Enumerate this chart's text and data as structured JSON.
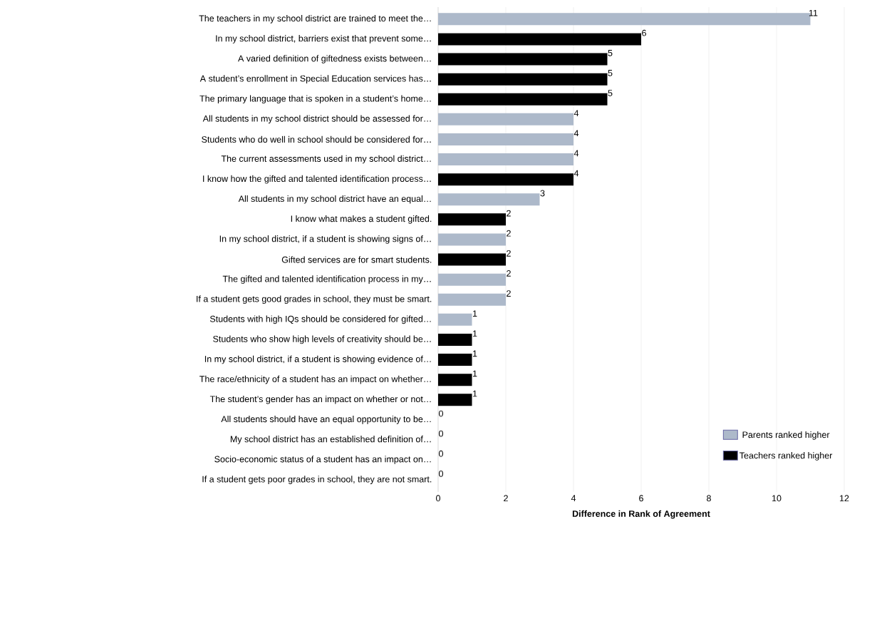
{
  "chart_data": {
    "type": "bar",
    "orientation": "horizontal",
    "xlabel": "Difference in Rank of Agreement",
    "categories": [
      "The teachers in my school district are trained to meet the…",
      "In my school district, barriers exist that prevent some…",
      "A varied definition of giftedness exists between…",
      "A student’s enrollment in Special Education services has…",
      "The primary language that is spoken in a student’s home…",
      "All students in my school district should be assessed for…",
      "Students who do well in school should be considered for…",
      "The current assessments used in my school district…",
      "I know how the gifted and talented identification process…",
      "All students in my school district have an equal…",
      "I know what makes a student gifted.",
      "In my school district, if a student is showing signs of…",
      "Gifted services are for smart students.",
      "The gifted and talented identification process in my…",
      "If a student gets good grades in school, they must be smart.",
      "Students with high IQs should be considered for gifted…",
      "Students who show high levels of creativity should be…",
      "In my school district, if a student is showing evidence of…",
      "The race/ethnicity of a student has an impact on whether…",
      "The student’s gender has an impact on whether or not…",
      "All students should have an equal opportunity to be…",
      "My school district has an established definition of…",
      "Socio-economic status of a student has an impact on…",
      "If a student gets poor grades in school, they are not smart."
    ],
    "series": [
      {
        "name": "Parents ranked higher",
        "color": "#adb9ca",
        "values": [
          11,
          null,
          null,
          null,
          null,
          4,
          4,
          4,
          null,
          3,
          null,
          2,
          null,
          2,
          2,
          1,
          null,
          null,
          null,
          null,
          0,
          0,
          0,
          0
        ]
      },
      {
        "name": "Teachers ranked higher",
        "color": "#000000",
        "values": [
          null,
          6,
          5,
          5,
          5,
          null,
          null,
          null,
          4,
          null,
          2,
          null,
          2,
          null,
          null,
          null,
          1,
          1,
          1,
          1,
          null,
          null,
          null,
          null
        ]
      }
    ],
    "xlim": [
      0,
      12
    ],
    "xticks": [
      0,
      2,
      4,
      6,
      8,
      10,
      12
    ],
    "grid": "x",
    "legend": "bottom right",
    "data_labels": true
  }
}
